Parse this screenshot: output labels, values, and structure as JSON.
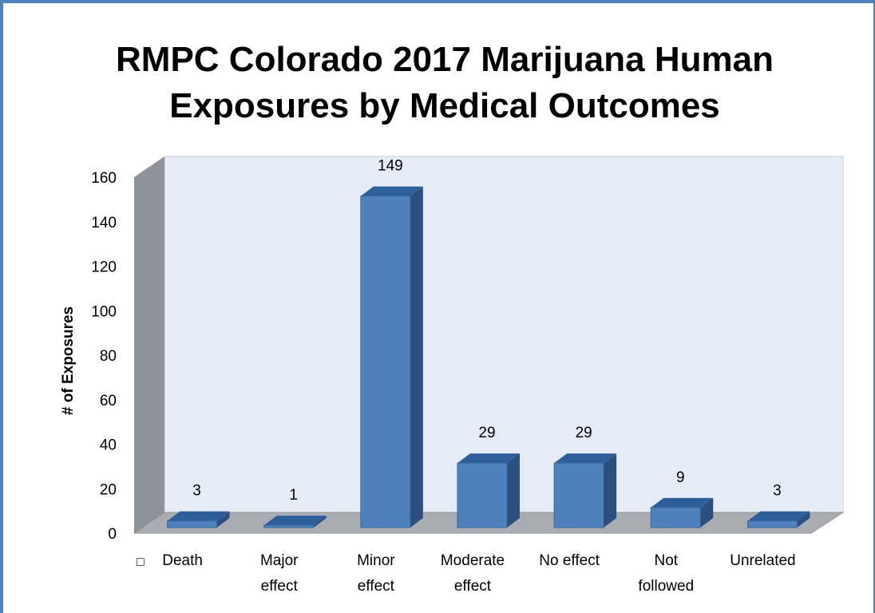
{
  "colors": {
    "frame_border": "#4f81bd",
    "bar_front": "#4f81bd",
    "bar_top": "#2f5f9a",
    "bar_side": "#2b4f7e",
    "back_wall": "#e6ecf7",
    "side_wall": "#8c9298",
    "floor": "#a9adb1"
  },
  "chart_data": {
    "type": "bar",
    "style": "3d-column",
    "title": "RMPC Colorado 2017 Marijuana Human Exposures by Medical Outcomes",
    "xlabel": "",
    "ylabel": "# of Exposures",
    "ylim": [
      0,
      160
    ],
    "yticks": [
      0,
      20,
      40,
      60,
      80,
      100,
      120,
      140,
      160
    ],
    "categories": [
      [
        "Death"
      ],
      [
        "Major",
        "effect"
      ],
      [
        "Minor",
        "effect"
      ],
      [
        "Moderate",
        "effect"
      ],
      [
        "No effect"
      ],
      [
        "Not",
        "followed"
      ],
      [
        "Unrelated"
      ]
    ],
    "values": [
      3,
      1,
      149,
      29,
      29,
      9,
      3
    ],
    "data_labels": [
      "3",
      "1",
      "149",
      "29",
      "29",
      "9",
      "3"
    ],
    "legend": "none",
    "grid": false,
    "marker_glyph": "□"
  }
}
